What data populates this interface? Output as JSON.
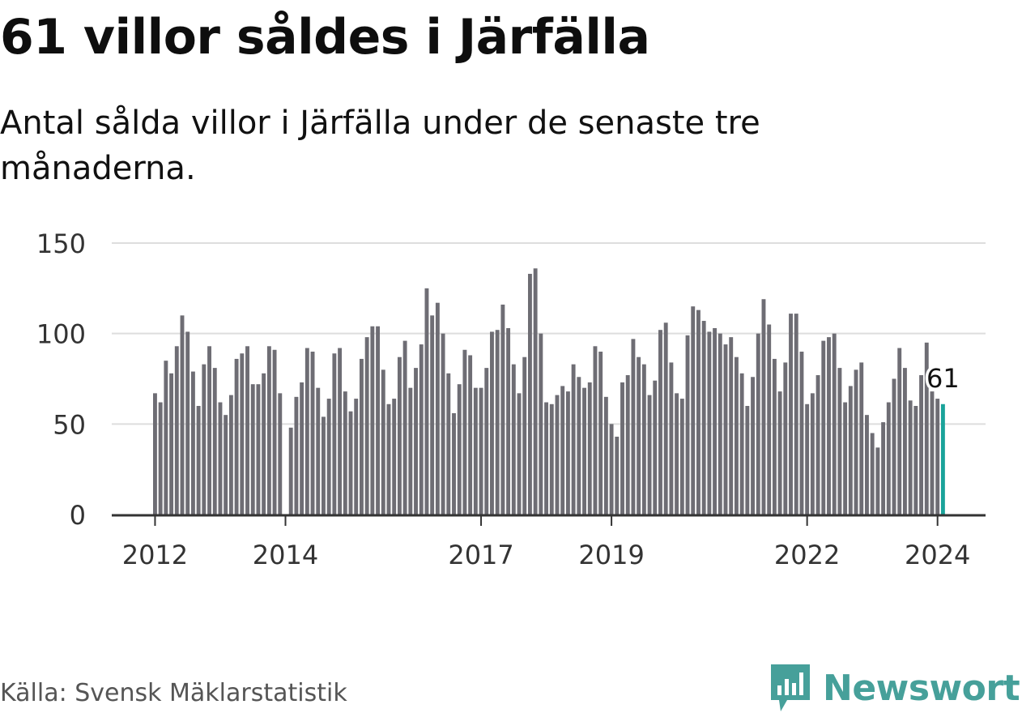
{
  "title": "61 villor såldes i Järfälla",
  "subtitle": "Antal sålda villor i Järfälla under de senaste tre månaderna.",
  "source": "Källa: Svensk Mäklarstatistik",
  "brand": "Newsworthy",
  "colors": {
    "bar": "#6e6d74",
    "highlight": "#1aa39a",
    "grid": "#dddddd",
    "axis": "#333333",
    "brand": "#46a09a"
  },
  "chart_data": {
    "type": "bar",
    "title": "61 villor såldes i Järfälla",
    "ylabel": "",
    "xlabel": "",
    "ylim": [
      0,
      150
    ],
    "yticks": [
      0,
      50,
      100,
      150
    ],
    "xtick_labels": [
      {
        "label": "2012",
        "index": 0
      },
      {
        "label": "2014",
        "index": 24
      },
      {
        "label": "2017",
        "index": 60
      },
      {
        "label": "2019",
        "index": 84
      },
      {
        "label": "2022",
        "index": 120
      },
      {
        "label": "2024",
        "index": 144
      }
    ],
    "last_value_label": "61",
    "values": [
      67,
      62,
      85,
      78,
      93,
      110,
      101,
      79,
      60,
      83,
      93,
      81,
      62,
      55,
      66,
      86,
      89,
      93,
      72,
      72,
      78,
      93,
      91,
      67,
      null,
      48,
      65,
      73,
      92,
      90,
      70,
      54,
      64,
      89,
      92,
      68,
      57,
      64,
      86,
      98,
      104,
      104,
      80,
      61,
      64,
      87,
      96,
      70,
      81,
      94,
      125,
      110,
      117,
      100,
      78,
      56,
      72,
      91,
      88,
      70,
      70,
      81,
      101,
      102,
      116,
      103,
      83,
      67,
      87,
      133,
      136,
      100,
      62,
      61,
      66,
      71,
      68,
      83,
      76,
      70,
      73,
      93,
      90,
      65,
      50,
      43,
      73,
      77,
      97,
      87,
      83,
      66,
      74,
      102,
      106,
      84,
      67,
      64,
      99,
      115,
      113,
      107,
      101,
      103,
      100,
      94,
      98,
      87,
      78,
      60,
      76,
      100,
      119,
      105,
      86,
      68,
      84,
      111,
      111,
      90,
      61,
      67,
      77,
      96,
      98,
      100,
      81,
      62,
      71,
      80,
      84,
      55,
      45,
      37,
      51,
      62,
      75,
      92,
      81,
      63,
      60,
      77,
      95,
      68,
      64,
      61
    ]
  }
}
